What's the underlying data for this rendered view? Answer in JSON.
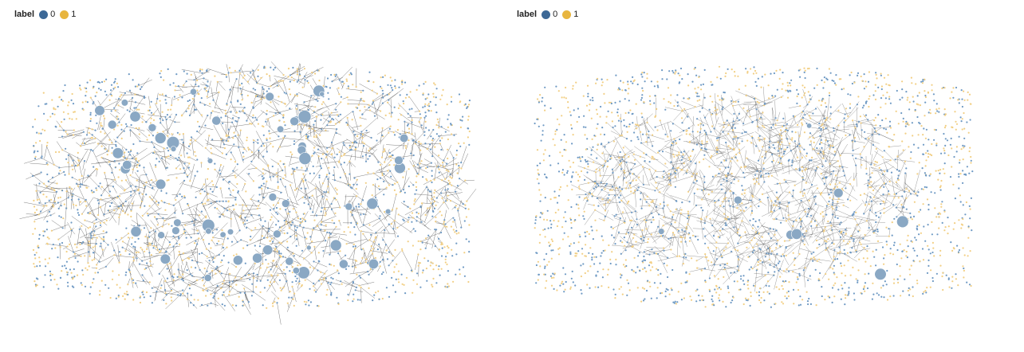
{
  "panels": [
    {
      "legend": {
        "title": "label",
        "items": [
          {
            "label": "0",
            "color": "#3c6896"
          },
          {
            "label": "1",
            "color": "#e8b53e"
          }
        ]
      }
    },
    {
      "legend": {
        "title": "label",
        "items": [
          {
            "label": "0",
            "color": "#3c6896"
          },
          {
            "label": "1",
            "color": "#e8b53e"
          }
        ]
      }
    }
  ],
  "colors": {
    "node_0": "#6f9ac4",
    "node_1": "#f2cf84",
    "hub": "#8aa8c4",
    "edge": "#333333"
  }
}
